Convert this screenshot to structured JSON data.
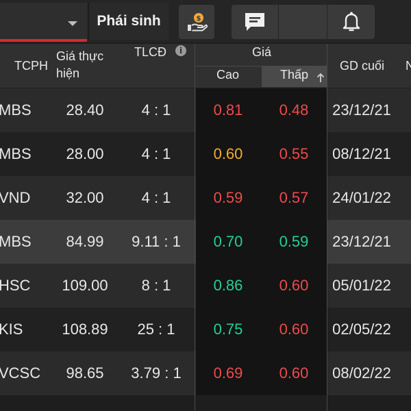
{
  "colors": {
    "red": "#ef4a4d",
    "green": "#22d19a",
    "yellow": "#f0ad2e",
    "accent": "#d9282f"
  },
  "tabs": {
    "active": "Phái sinh"
  },
  "icons": [
    "money-hand-icon",
    "chat-icon",
    "bell-icon"
  ],
  "table": {
    "headers": {
      "tcph": "TCPH",
      "gia_thuc_hien_1": "Giá thực",
      "gia_thuc_hien_2": "hiện",
      "tlcd": "TLCĐ",
      "gia": "Giá",
      "cao": "Cao",
      "thap": "Thấp",
      "gd_cuoi": "GD cuối",
      "cut": "N"
    },
    "rows": [
      {
        "tcph": "MBS",
        "gia": "28.40",
        "tlcd": "4 : 1",
        "cao": "0.81",
        "cao_color": "red",
        "thap": "0.48",
        "thap_color": "red",
        "gd": "23/12/21"
      },
      {
        "tcph": "MBS",
        "gia": "28.00",
        "tlcd": "4 : 1",
        "cao": "0.60",
        "cao_color": "yellow",
        "thap": "0.55",
        "thap_color": "red",
        "gd": "08/12/21"
      },
      {
        "tcph": "VND",
        "gia": "32.00",
        "tlcd": "4 : 1",
        "cao": "0.59",
        "cao_color": "red",
        "thap": "0.57",
        "thap_color": "red",
        "gd": "24/01/22"
      },
      {
        "tcph": "MBS",
        "gia": "84.99",
        "tlcd": "9.11 : 1",
        "cao": "0.70",
        "cao_color": "green",
        "thap": "0.59",
        "thap_color": "green",
        "gd": "23/12/21"
      },
      {
        "tcph": "HSC",
        "gia": "109.00",
        "tlcd": "8 : 1",
        "cao": "0.86",
        "cao_color": "green",
        "thap": "0.60",
        "thap_color": "red",
        "gd": "05/01/22"
      },
      {
        "tcph": "KIS",
        "gia": "108.89",
        "tlcd": "25 : 1",
        "cao": "0.75",
        "cao_color": "green",
        "thap": "0.60",
        "thap_color": "red",
        "gd": "02/05/22"
      },
      {
        "tcph": "VCSC",
        "gia": "98.65",
        "tlcd": "3.79 : 1",
        "cao": "0.69",
        "cao_color": "red",
        "thap": "0.60",
        "thap_color": "red",
        "gd": "08/02/22"
      }
    ]
  }
}
